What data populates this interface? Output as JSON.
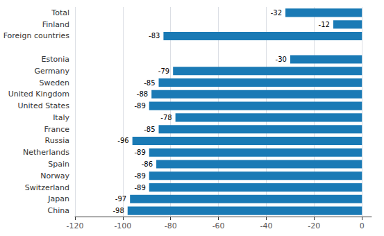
{
  "chart_data": {
    "type": "bar",
    "orientation": "horizontal",
    "categories": [
      "China",
      "Japan",
      "Switzerland",
      "Norway",
      "Spain",
      "Netherlands",
      "Russia",
      "France",
      "Italy",
      "United States",
      "United Kingdom",
      "Sweden",
      "Germany",
      "Estonia",
      null,
      "Foreign countries",
      "Finland",
      "Total"
    ],
    "values": [
      -98,
      -97,
      -89,
      -89,
      -86,
      -89,
      -96,
      -85,
      -78,
      -89,
      -88,
      -85,
      -79,
      -30,
      null,
      -83,
      -12,
      -32
    ],
    "color": "#1a7ab5",
    "xlim": [
      -120,
      4
    ],
    "xticks": [
      -120,
      -100,
      -80,
      -60,
      -40,
      -20,
      0
    ],
    "grid": true,
    "data_labels": true
  }
}
